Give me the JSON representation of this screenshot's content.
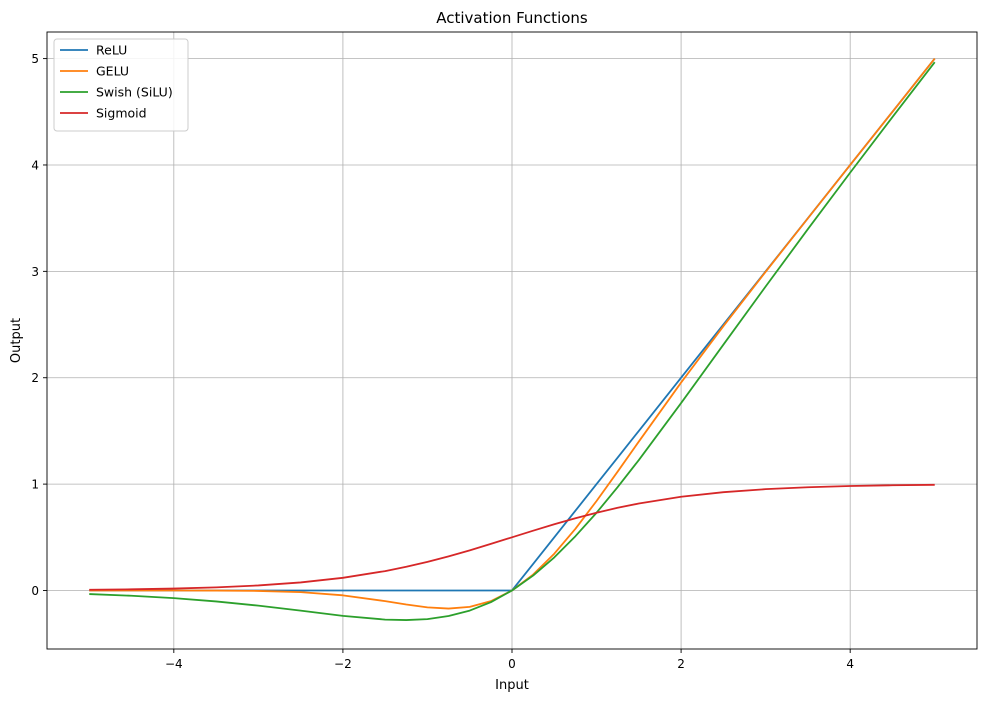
{
  "chart_data": {
    "type": "line",
    "title": "Activation Functions",
    "xlabel": "Input",
    "ylabel": "Output",
    "xlim": [
      -5.5,
      5.5
    ],
    "ylim": [
      -0.55,
      5.25
    ],
    "xticks": [
      -4,
      -2,
      0,
      2,
      4
    ],
    "yticks": [
      0,
      1,
      2,
      3,
      4,
      5
    ],
    "xtick_labels": [
      "−4",
      "−2",
      "0",
      "2",
      "4"
    ],
    "ytick_labels": [
      "0",
      "1",
      "2",
      "3",
      "4",
      "5"
    ],
    "grid": true,
    "legend_position": "top-left",
    "x": [
      -5,
      -4.5,
      -4,
      -3.5,
      -3,
      -2.5,
      -2,
      -1.5,
      -1.25,
      -1,
      -0.75,
      -0.5,
      -0.25,
      0,
      0.25,
      0.5,
      0.75,
      1,
      1.25,
      1.5,
      2,
      2.5,
      3,
      3.5,
      4,
      4.5,
      5
    ],
    "series": [
      {
        "name": "ReLU",
        "color": "#1f77b4",
        "values": [
          0,
          0,
          0,
          0,
          0,
          0,
          0,
          0,
          0,
          0,
          0,
          0,
          0,
          0,
          0.25,
          0.5,
          0.75,
          1,
          1.25,
          1.5,
          2,
          2.5,
          3,
          3.5,
          4,
          4.5,
          5
        ]
      },
      {
        "name": "GELU",
        "color": "#ff7f0e",
        "values": [
          0,
          0,
          -0.0001,
          -0.0008,
          -0.004,
          -0.0155,
          -0.0455,
          -0.1002,
          -0.132,
          -0.1587,
          -0.17,
          -0.1543,
          -0.1003,
          0,
          0.1497,
          0.3457,
          0.58,
          0.8413,
          1.118,
          1.3998,
          1.9545,
          2.4845,
          2.996,
          3.4992,
          3.9999,
          4.5,
          5
        ]
      },
      {
        "name": "Swish (SiLU)",
        "color": "#2ca02c",
        "values": [
          -0.0335,
          -0.0494,
          -0.0719,
          -0.1027,
          -0.1423,
          -0.1896,
          -0.2384,
          -0.2736,
          -0.2779,
          -0.2689,
          -0.2397,
          -0.1888,
          -0.1097,
          0,
          0.1403,
          0.3112,
          0.5103,
          0.7311,
          0.9721,
          1.2264,
          1.7616,
          2.3104,
          2.8577,
          3.3973,
          3.9281,
          4.4506,
          4.9665
        ]
      },
      {
        "name": "Sigmoid",
        "color": "#d62728",
        "values": [
          0.0067,
          0.011,
          0.018,
          0.0293,
          0.0474,
          0.0759,
          0.1192,
          0.1824,
          0.2227,
          0.2689,
          0.3208,
          0.3775,
          0.4378,
          0.5,
          0.5622,
          0.6225,
          0.6792,
          0.7311,
          0.7773,
          0.8176,
          0.8808,
          0.9241,
          0.9526,
          0.9707,
          0.982,
          0.989,
          0.9933
        ]
      }
    ]
  }
}
